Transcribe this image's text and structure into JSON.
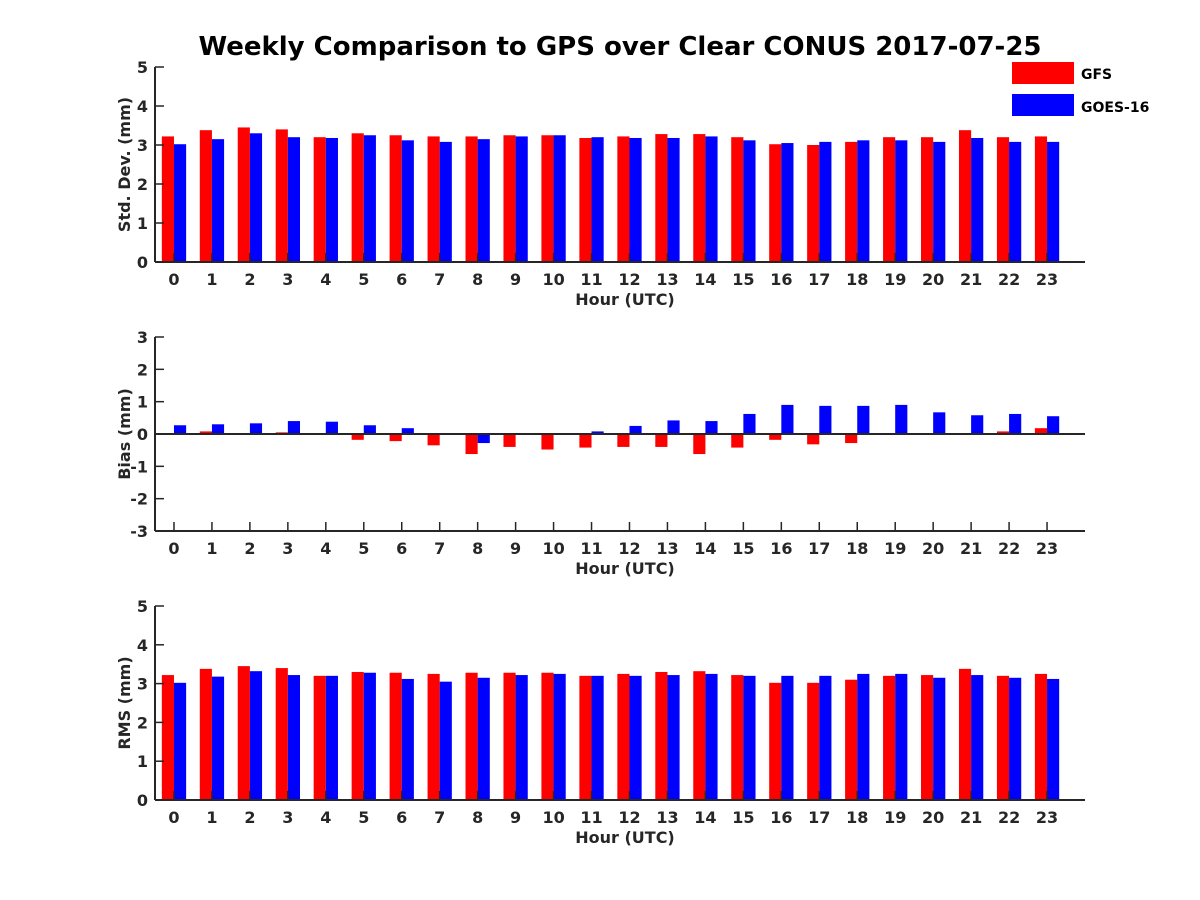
{
  "figure_title": "Weekly Comparison to GPS over Clear CONUS 2017-07-25",
  "legend": [
    {
      "label": "GFS",
      "color": "#ff0000"
    },
    {
      "label": "GOES-16",
      "color": "#0000ff"
    }
  ],
  "chart_data": [
    {
      "type": "bar",
      "title": "Weekly Comparison to GPS over Clear CONUS 2017-07-25",
      "xlabel": "Hour (UTC)",
      "ylabel": "Std. Dev. (mm)",
      "ylim": [
        0,
        5
      ],
      "yticks": [
        0,
        1,
        2,
        3,
        4,
        5
      ],
      "categories": [
        "0",
        "1",
        "2",
        "3",
        "4",
        "5",
        "6",
        "7",
        "8",
        "9",
        "10",
        "11",
        "12",
        "13",
        "14",
        "15",
        "16",
        "17",
        "18",
        "19",
        "20",
        "21",
        "22",
        "23"
      ],
      "series": [
        {
          "name": "GFS",
          "color": "#ff0000",
          "values": [
            3.22,
            3.38,
            3.45,
            3.4,
            3.2,
            3.3,
            3.25,
            3.22,
            3.22,
            3.25,
            3.25,
            3.18,
            3.22,
            3.28,
            3.28,
            3.2,
            3.02,
            3.0,
            3.08,
            3.2,
            3.2,
            3.38,
            3.2,
            3.22
          ]
        },
        {
          "name": "GOES-16",
          "color": "#0000ff",
          "values": [
            3.02,
            3.15,
            3.3,
            3.2,
            3.18,
            3.25,
            3.12,
            3.08,
            3.15,
            3.22,
            3.25,
            3.2,
            3.18,
            3.18,
            3.22,
            3.12,
            3.05,
            3.08,
            3.12,
            3.12,
            3.08,
            3.18,
            3.08,
            3.08
          ]
        }
      ]
    },
    {
      "type": "bar",
      "title": "",
      "xlabel": "Hour (UTC)",
      "ylabel": "Bias (mm)",
      "ylim": [
        -3,
        3
      ],
      "yticks": [
        -3,
        -2,
        -1,
        0,
        1,
        2,
        3
      ],
      "categories": [
        "0",
        "1",
        "2",
        "3",
        "4",
        "5",
        "6",
        "7",
        "8",
        "9",
        "10",
        "11",
        "12",
        "13",
        "14",
        "15",
        "16",
        "17",
        "18",
        "19",
        "20",
        "21",
        "22",
        "23"
      ],
      "series": [
        {
          "name": "GFS",
          "color": "#ff0000",
          "values": [
            0.0,
            0.08,
            0.02,
            0.05,
            -0.02,
            -0.18,
            -0.22,
            -0.35,
            -0.62,
            -0.4,
            -0.48,
            -0.42,
            -0.4,
            -0.4,
            -0.62,
            -0.42,
            -0.18,
            -0.32,
            -0.28,
            -0.03,
            -0.03,
            -0.03,
            0.08,
            0.18
          ]
        },
        {
          "name": "GOES-16",
          "color": "#0000ff",
          "values": [
            0.27,
            0.3,
            0.33,
            0.4,
            0.38,
            0.27,
            0.18,
            -0.02,
            -0.28,
            0.0,
            0.02,
            0.08,
            0.25,
            0.42,
            0.4,
            0.62,
            0.9,
            0.87,
            0.87,
            0.9,
            0.67,
            0.58,
            0.62,
            0.55
          ]
        }
      ]
    },
    {
      "type": "bar",
      "title": "",
      "xlabel": "Hour (UTC)",
      "ylabel": "RMS (mm)",
      "ylim": [
        0,
        5
      ],
      "yticks": [
        0,
        1,
        2,
        3,
        4,
        5
      ],
      "categories": [
        "0",
        "1",
        "2",
        "3",
        "4",
        "5",
        "6",
        "7",
        "8",
        "9",
        "10",
        "11",
        "12",
        "13",
        "14",
        "15",
        "16",
        "17",
        "18",
        "19",
        "20",
        "21",
        "22",
        "23"
      ],
      "series": [
        {
          "name": "GFS",
          "color": "#ff0000",
          "values": [
            3.22,
            3.38,
            3.45,
            3.4,
            3.2,
            3.3,
            3.28,
            3.25,
            3.28,
            3.28,
            3.28,
            3.2,
            3.25,
            3.3,
            3.32,
            3.22,
            3.02,
            3.02,
            3.1,
            3.2,
            3.22,
            3.38,
            3.2,
            3.25
          ]
        },
        {
          "name": "GOES-16",
          "color": "#0000ff",
          "values": [
            3.02,
            3.18,
            3.32,
            3.22,
            3.2,
            3.28,
            3.12,
            3.05,
            3.15,
            3.22,
            3.25,
            3.2,
            3.2,
            3.22,
            3.25,
            3.2,
            3.2,
            3.2,
            3.25,
            3.25,
            3.15,
            3.22,
            3.15,
            3.12
          ]
        }
      ]
    }
  ]
}
